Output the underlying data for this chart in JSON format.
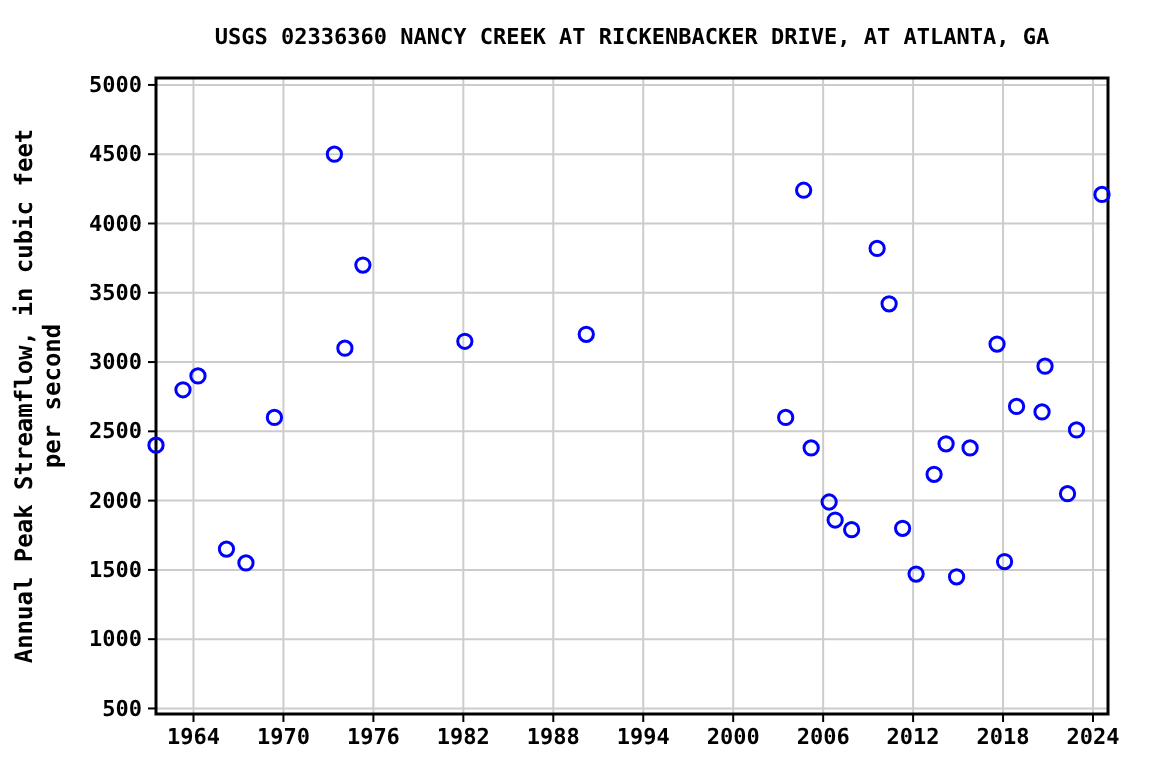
{
  "chart_data": {
    "type": "scatter",
    "title": "USGS 02336360 NANCY CREEK AT RICKENBACKER DRIVE, AT ATLANTA, GA",
    "ylabel": "Annual Peak Streamflow, in cubic feet per second",
    "x": [
      1961.5,
      1963.3,
      1964.3,
      1966.2,
      1967.5,
      1969.4,
      1973.4,
      1974.1,
      1975.3,
      1982.1,
      1990.2,
      2003.5,
      2004.7,
      2005.2,
      2006.4,
      2006.8,
      2007.9,
      2009.6,
      2010.4,
      2011.3,
      2012.2,
      2013.4,
      2014.2,
      2014.9,
      2015.8,
      2017.6,
      2018.1,
      2018.9,
      2020.6,
      2020.8,
      2022.3,
      2022.9,
      2024.6
    ],
    "series": [
      {
        "color": "#0000ff",
        "values": [
          2400,
          2800,
          2900,
          1650,
          1550,
          2600,
          4500,
          3100,
          3700,
          3150,
          3200,
          2600,
          4240,
          2380,
          1990,
          1860,
          1790,
          3820,
          3420,
          1800,
          1470,
          2190,
          2410,
          1450,
          2380,
          3130,
          1560,
          2680,
          2640,
          2970,
          2050,
          2510,
          4210
        ]
      }
    ],
    "xlim": [
      1961.5,
      2025
    ],
    "xticks": [
      1964,
      1970,
      1976,
      1982,
      1988,
      1994,
      2000,
      2006,
      2012,
      2018,
      2024
    ],
    "ylim": [
      460,
      5050
    ],
    "yticks": [
      500,
      1000,
      1500,
      2000,
      2500,
      3000,
      3500,
      4000,
      4500,
      5000
    ],
    "grid": true,
    "marker": "circle"
  }
}
